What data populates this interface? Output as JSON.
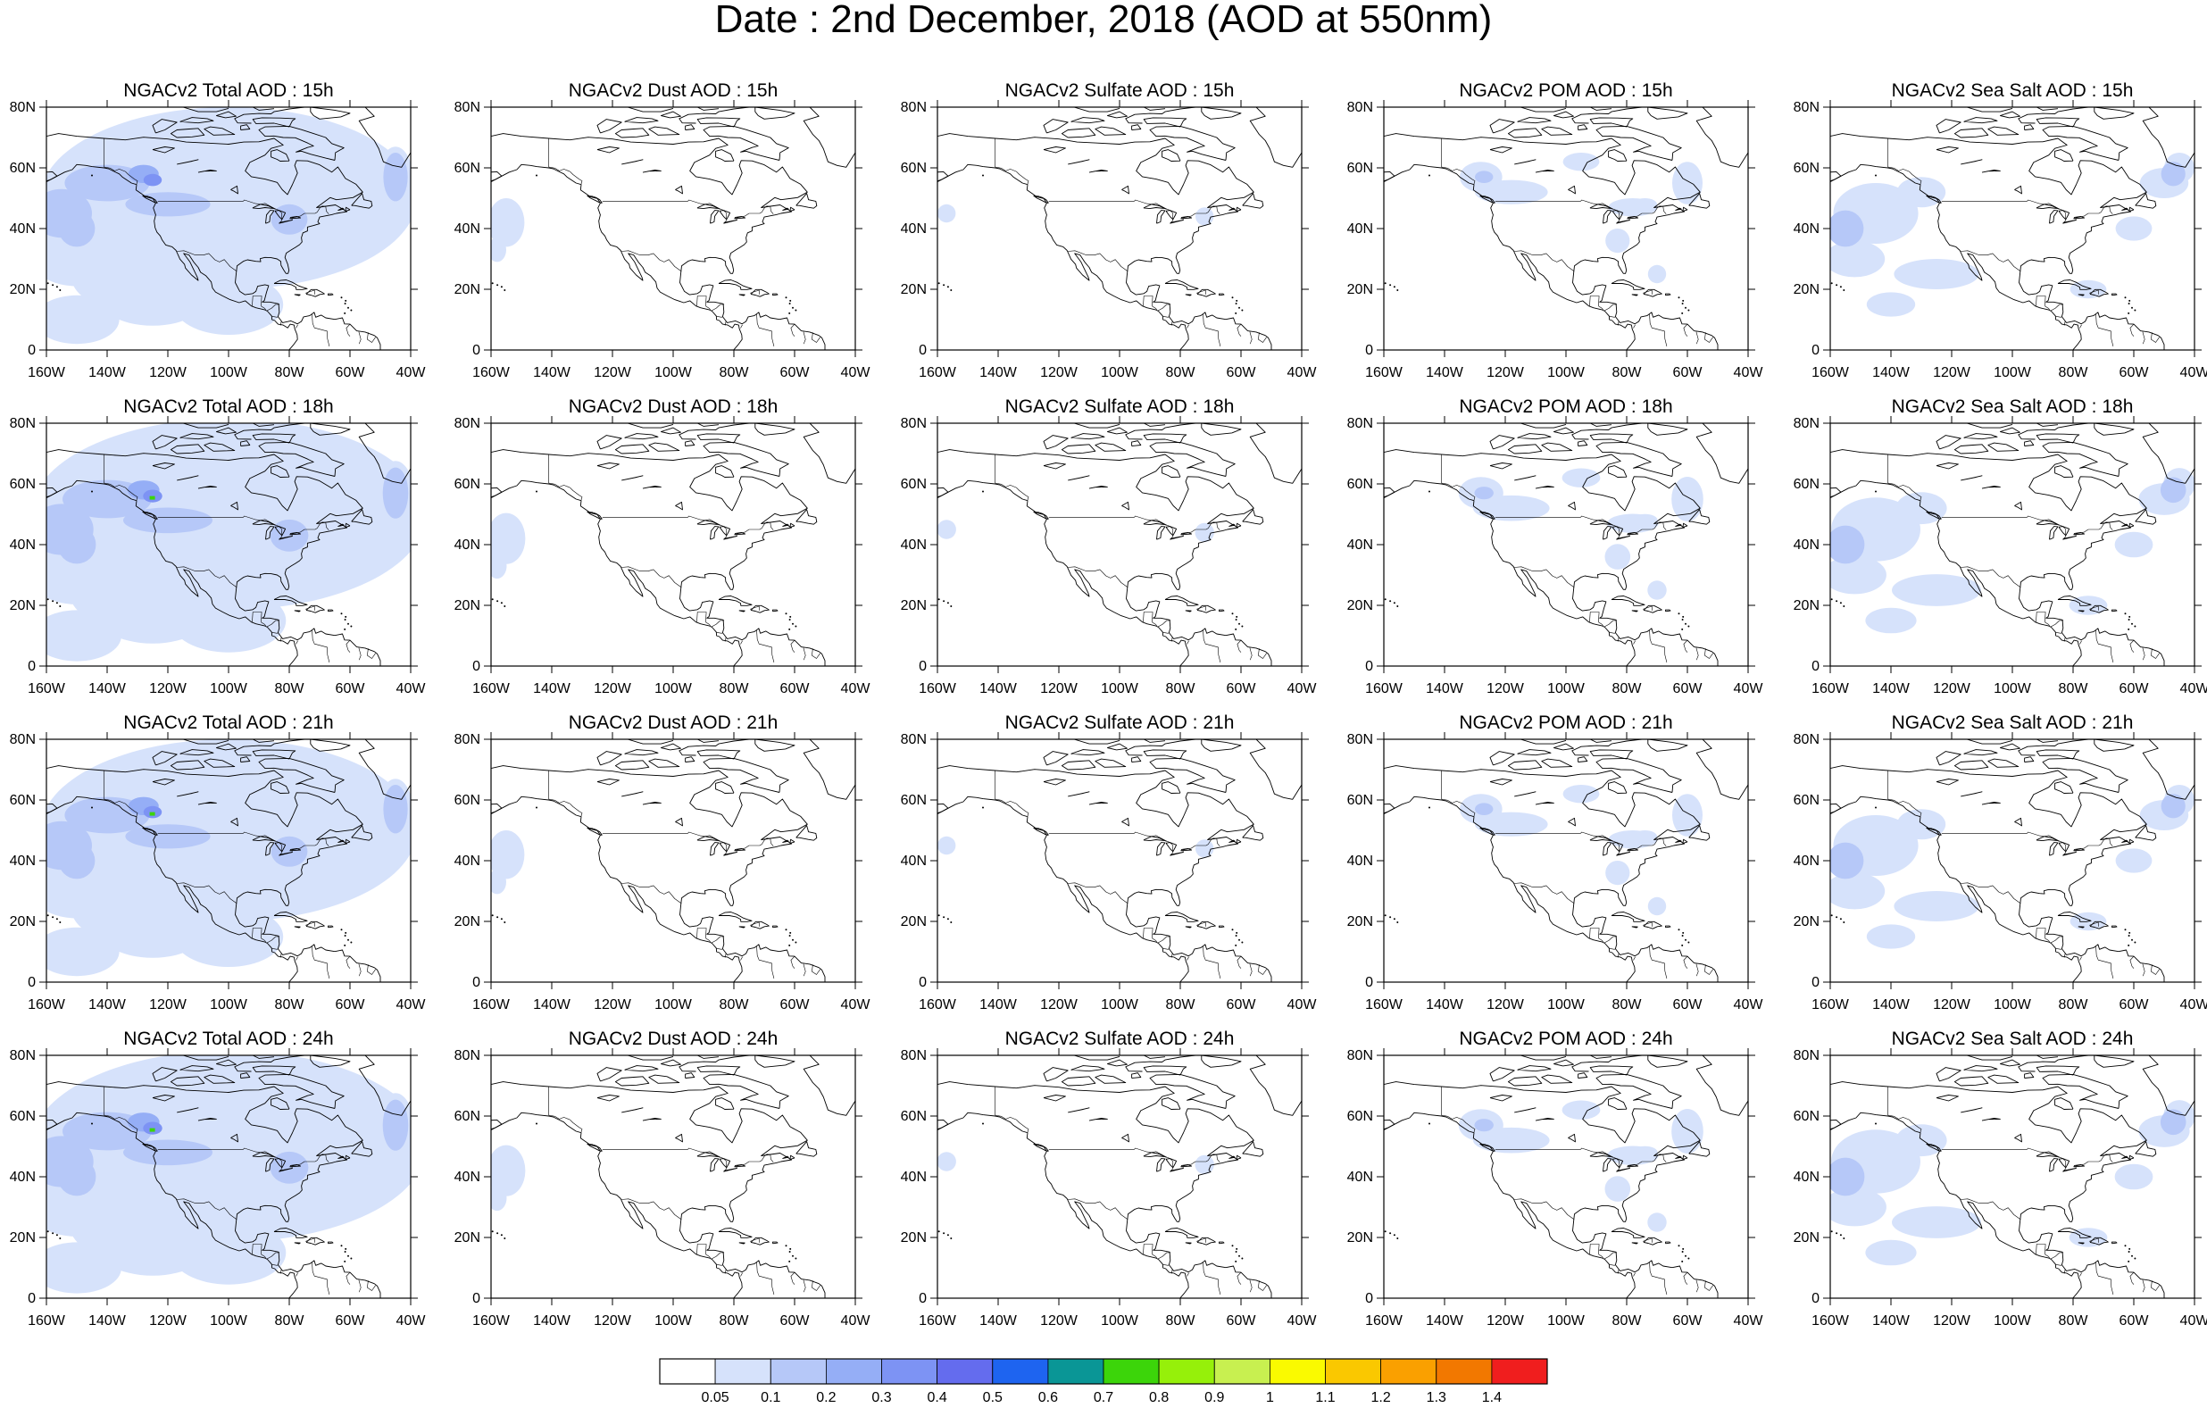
{
  "title": "Date : 2nd December, 2018 (AOD at 550nm)",
  "panel_titles": [
    [
      "NGACv2 Total AOD : 15h",
      "NGACv2 Dust AOD : 15h",
      "NGACv2 Sulfate AOD : 15h",
      "NGACv2 POM AOD : 15h",
      "NGACv2 Sea Salt AOD : 15h"
    ],
    [
      "NGACv2 Total AOD : 18h",
      "NGACv2 Dust AOD : 18h",
      "NGACv2 Sulfate AOD : 18h",
      "NGACv2 POM AOD : 18h",
      "NGACv2 Sea Salt AOD : 18h"
    ],
    [
      "NGACv2 Total AOD : 21h",
      "NGACv2 Dust AOD : 21h",
      "NGACv2 Sulfate AOD : 21h",
      "NGACv2 POM AOD : 21h",
      "NGACv2 Sea Salt AOD : 21h"
    ],
    [
      "NGACv2 Total AOD : 24h",
      "NGACv2 Dust AOD : 24h",
      "NGACv2 Sulfate AOD : 24h",
      "NGACv2 POM AOD : 24h",
      "NGACv2 Sea Salt  AOD : 24h"
    ]
  ],
  "lat_labels": [
    "80N",
    "60N",
    "40N",
    "20N",
    "0"
  ],
  "lon_labels": [
    "160W",
    "140W",
    "120W",
    "100W",
    "80W",
    "60W",
    "40W"
  ],
  "colorbar": {
    "colors": [
      "#ffffff",
      "#d6e2fb",
      "#b6c8f8",
      "#95aef6",
      "#7d93f4",
      "#646cee",
      "#1e64f0",
      "#0a9696",
      "#3cd50a",
      "#96f00a",
      "#c8f050",
      "#fafa00",
      "#fac800",
      "#faa000",
      "#f27800",
      "#f01e1e"
    ],
    "labels": [
      "0.05",
      "0.1",
      "0.2",
      "0.3",
      "0.4",
      "0.5",
      "0.6",
      "0.7",
      "0.8",
      "0.9",
      "1",
      "1.1",
      "1.2",
      "1.3",
      "1.4"
    ]
  }
}
